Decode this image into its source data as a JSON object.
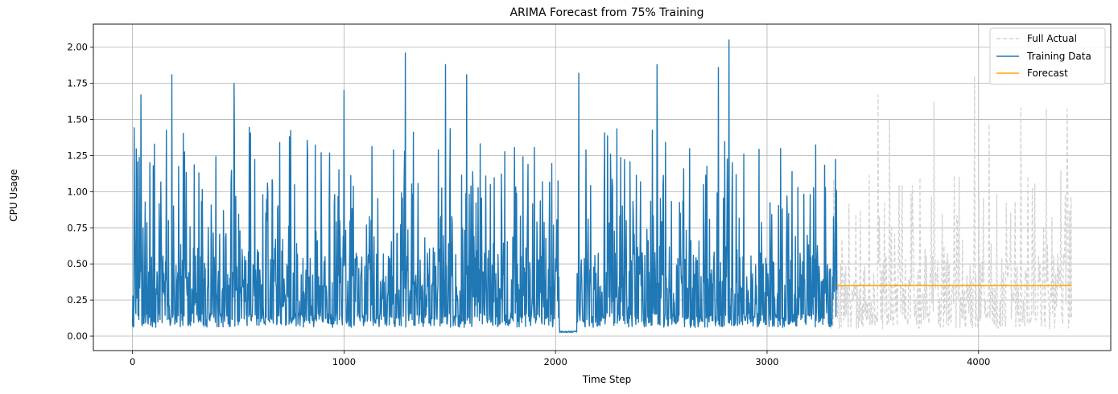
{
  "chart_data": {
    "type": "line",
    "title": "ARIMA Forecast from 75% Training",
    "xlabel": "Time Step",
    "ylabel": "CPU Usage",
    "xlim": [
      -185,
      4625
    ],
    "ylim": [
      -0.1,
      2.16
    ],
    "xticks": [
      0,
      1000,
      2000,
      3000,
      4000
    ],
    "yticks": [
      0.0,
      0.25,
      0.5,
      0.75,
      1.0,
      1.25,
      1.5,
      1.75,
      2.0
    ],
    "xtick_labels": [
      "0",
      "1000",
      "2000",
      "3000",
      "4000"
    ],
    "ytick_labels": [
      "0.00",
      "0.25",
      "0.50",
      "0.75",
      "1.00",
      "1.25",
      "1.50",
      "1.75",
      "2.00"
    ],
    "grid": true,
    "legend_position": "top-right",
    "series": [
      {
        "name": "Full Actual",
        "style": "dashed",
        "color": "#d3d3d3",
        "x_range": [
          0,
          4440
        ],
        "baseline_range": [
          0.05,
          0.17
        ],
        "typical_peak_range": [
          0.55,
          1.15
        ],
        "notable_peaks": [
          [
            3525,
            1.67
          ],
          [
            3580,
            1.5
          ],
          [
            3790,
            1.62
          ],
          [
            3980,
            1.8
          ],
          [
            4050,
            1.47
          ],
          [
            4200,
            1.58
          ],
          [
            4320,
            1.57
          ],
          [
            4420,
            1.57
          ]
        ]
      },
      {
        "name": "Training Data",
        "style": "solid",
        "color": "#1f77b4",
        "x_range": [
          0,
          3330
        ],
        "baseline_range": [
          0.06,
          0.16
        ],
        "typical_peak_range": [
          0.55,
          1.45
        ],
        "flat_segment": {
          "x": [
            2020,
            2100
          ],
          "y": 0.03
        },
        "notable_peaks": [
          [
            40,
            1.67
          ],
          [
            185,
            1.81
          ],
          [
            480,
            1.75
          ],
          [
            1000,
            1.7
          ],
          [
            1290,
            1.96
          ],
          [
            1480,
            1.88
          ],
          [
            1580,
            1.81
          ],
          [
            2110,
            1.82
          ],
          [
            2480,
            1.88
          ],
          [
            2770,
            1.86
          ],
          [
            2820,
            2.05
          ],
          [
            3310,
            0.41
          ]
        ]
      },
      {
        "name": "Forecast",
        "style": "solid",
        "color": "#ffa500",
        "x": [
          3330,
          4440
        ],
        "y": [
          0.35,
          0.35
        ]
      }
    ]
  }
}
